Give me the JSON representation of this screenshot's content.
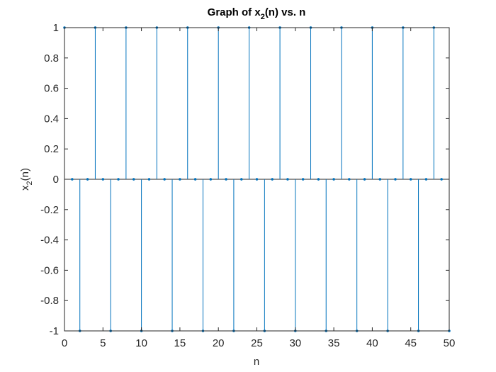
{
  "chart_data": {
    "type": "stem",
    "title_main": "Graph of x",
    "title_sub": "2",
    "title_tail": "(n) vs. n",
    "xlabel": "n",
    "ylabel_main": "x",
    "ylabel_sub": "2",
    "ylabel_tail": "(n)",
    "xlim": [
      0,
      50
    ],
    "ylim": [
      -1,
      1
    ],
    "xticks": [
      0,
      5,
      10,
      15,
      20,
      25,
      30,
      35,
      40,
      45,
      50
    ],
    "xtick_labels": [
      "0",
      "5",
      "10",
      "15",
      "20",
      "25",
      "30",
      "35",
      "40",
      "45",
      "50"
    ],
    "yticks": [
      -1,
      -0.8,
      -0.6,
      -0.4,
      -0.2,
      0,
      0.2,
      0.4,
      0.6,
      0.8,
      1
    ],
    "ytick_labels": [
      "-1",
      "-0.8",
      "-0.6",
      "-0.4",
      "-0.2",
      "0",
      "0.2",
      "0.4",
      "0.6",
      "0.8",
      "1"
    ],
    "grid": false,
    "series": [
      {
        "color": "#0072BD",
        "x": [
          0,
          1,
          2,
          3,
          4,
          5,
          6,
          7,
          8,
          9,
          10,
          11,
          12,
          13,
          14,
          15,
          16,
          17,
          18,
          19,
          20,
          21,
          22,
          23,
          24,
          25,
          26,
          27,
          28,
          29,
          30,
          31,
          32,
          33,
          34,
          35,
          36,
          37,
          38,
          39,
          40,
          41,
          42,
          43,
          44,
          45,
          46,
          47,
          48,
          49,
          50
        ],
        "y": [
          1,
          0,
          -1,
          0,
          1,
          0,
          -1,
          0,
          1,
          0,
          -1,
          0,
          1,
          0,
          -1,
          0,
          1,
          0,
          -1,
          0,
          1,
          0,
          -1,
          0,
          1,
          0,
          -1,
          0,
          1,
          0,
          -1,
          0,
          1,
          0,
          -1,
          0,
          1,
          0,
          -1,
          0,
          1,
          0,
          -1,
          0,
          1,
          0,
          -1,
          0,
          1,
          0,
          -1
        ]
      }
    ]
  }
}
